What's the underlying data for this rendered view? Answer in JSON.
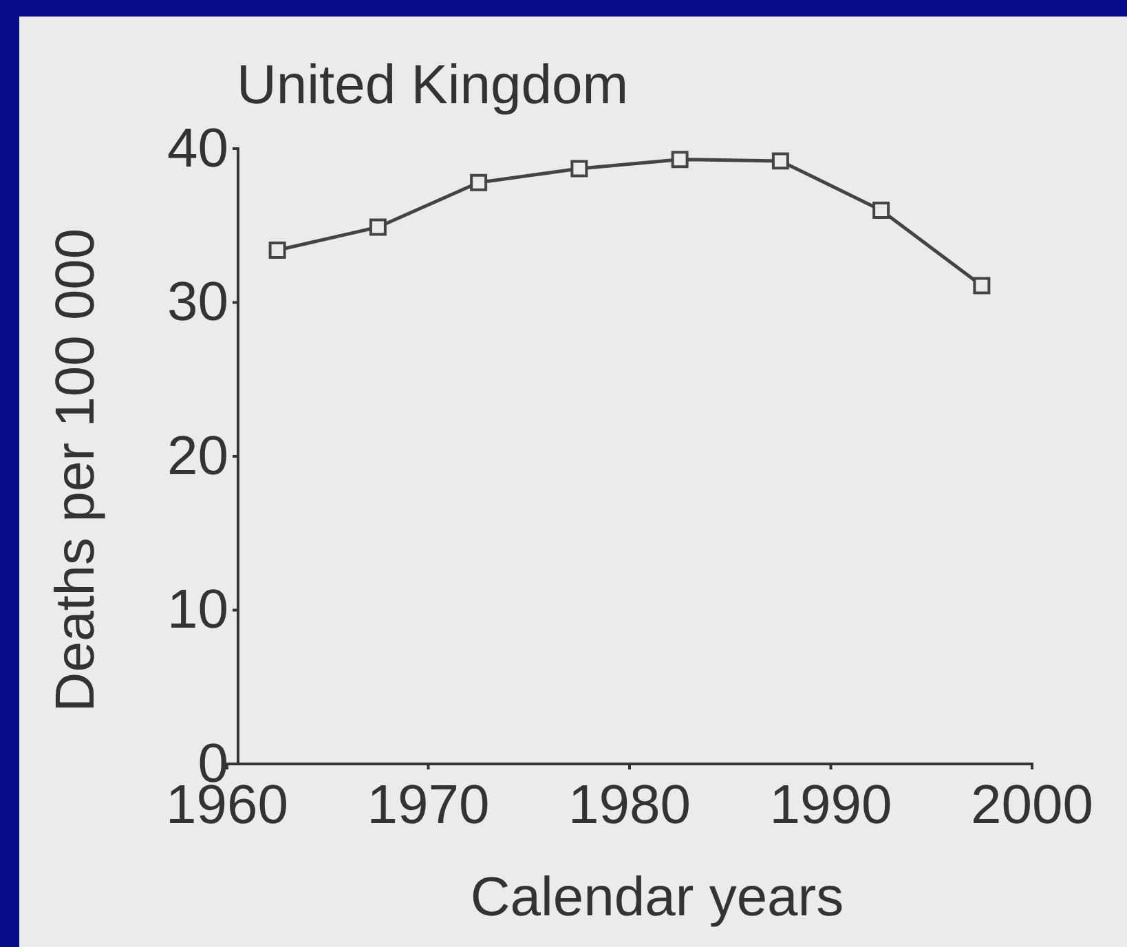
{
  "chart_data": {
    "type": "line",
    "title": "United Kingdom",
    "xlabel": "Calendar years",
    "ylabel": "Deaths per 100 000",
    "x": [
      1962.5,
      1967.5,
      1972.5,
      1977.5,
      1982.5,
      1987.5,
      1992.5,
      1997.5
    ],
    "series": [
      {
        "color": "#444444",
        "values": [
          33.4,
          34.9,
          37.8,
          38.7,
          39.3,
          39.2,
          36.0,
          31.1
        ]
      }
    ],
    "xlim": [
      1960,
      2000
    ],
    "xticks": [
      1960,
      1970,
      1980,
      1990,
      2000
    ],
    "ylim": [
      0,
      40
    ],
    "yticks": [
      0,
      10,
      20,
      30,
      40
    ],
    "grid": false,
    "marker": "square",
    "line_style": "solid"
  }
}
